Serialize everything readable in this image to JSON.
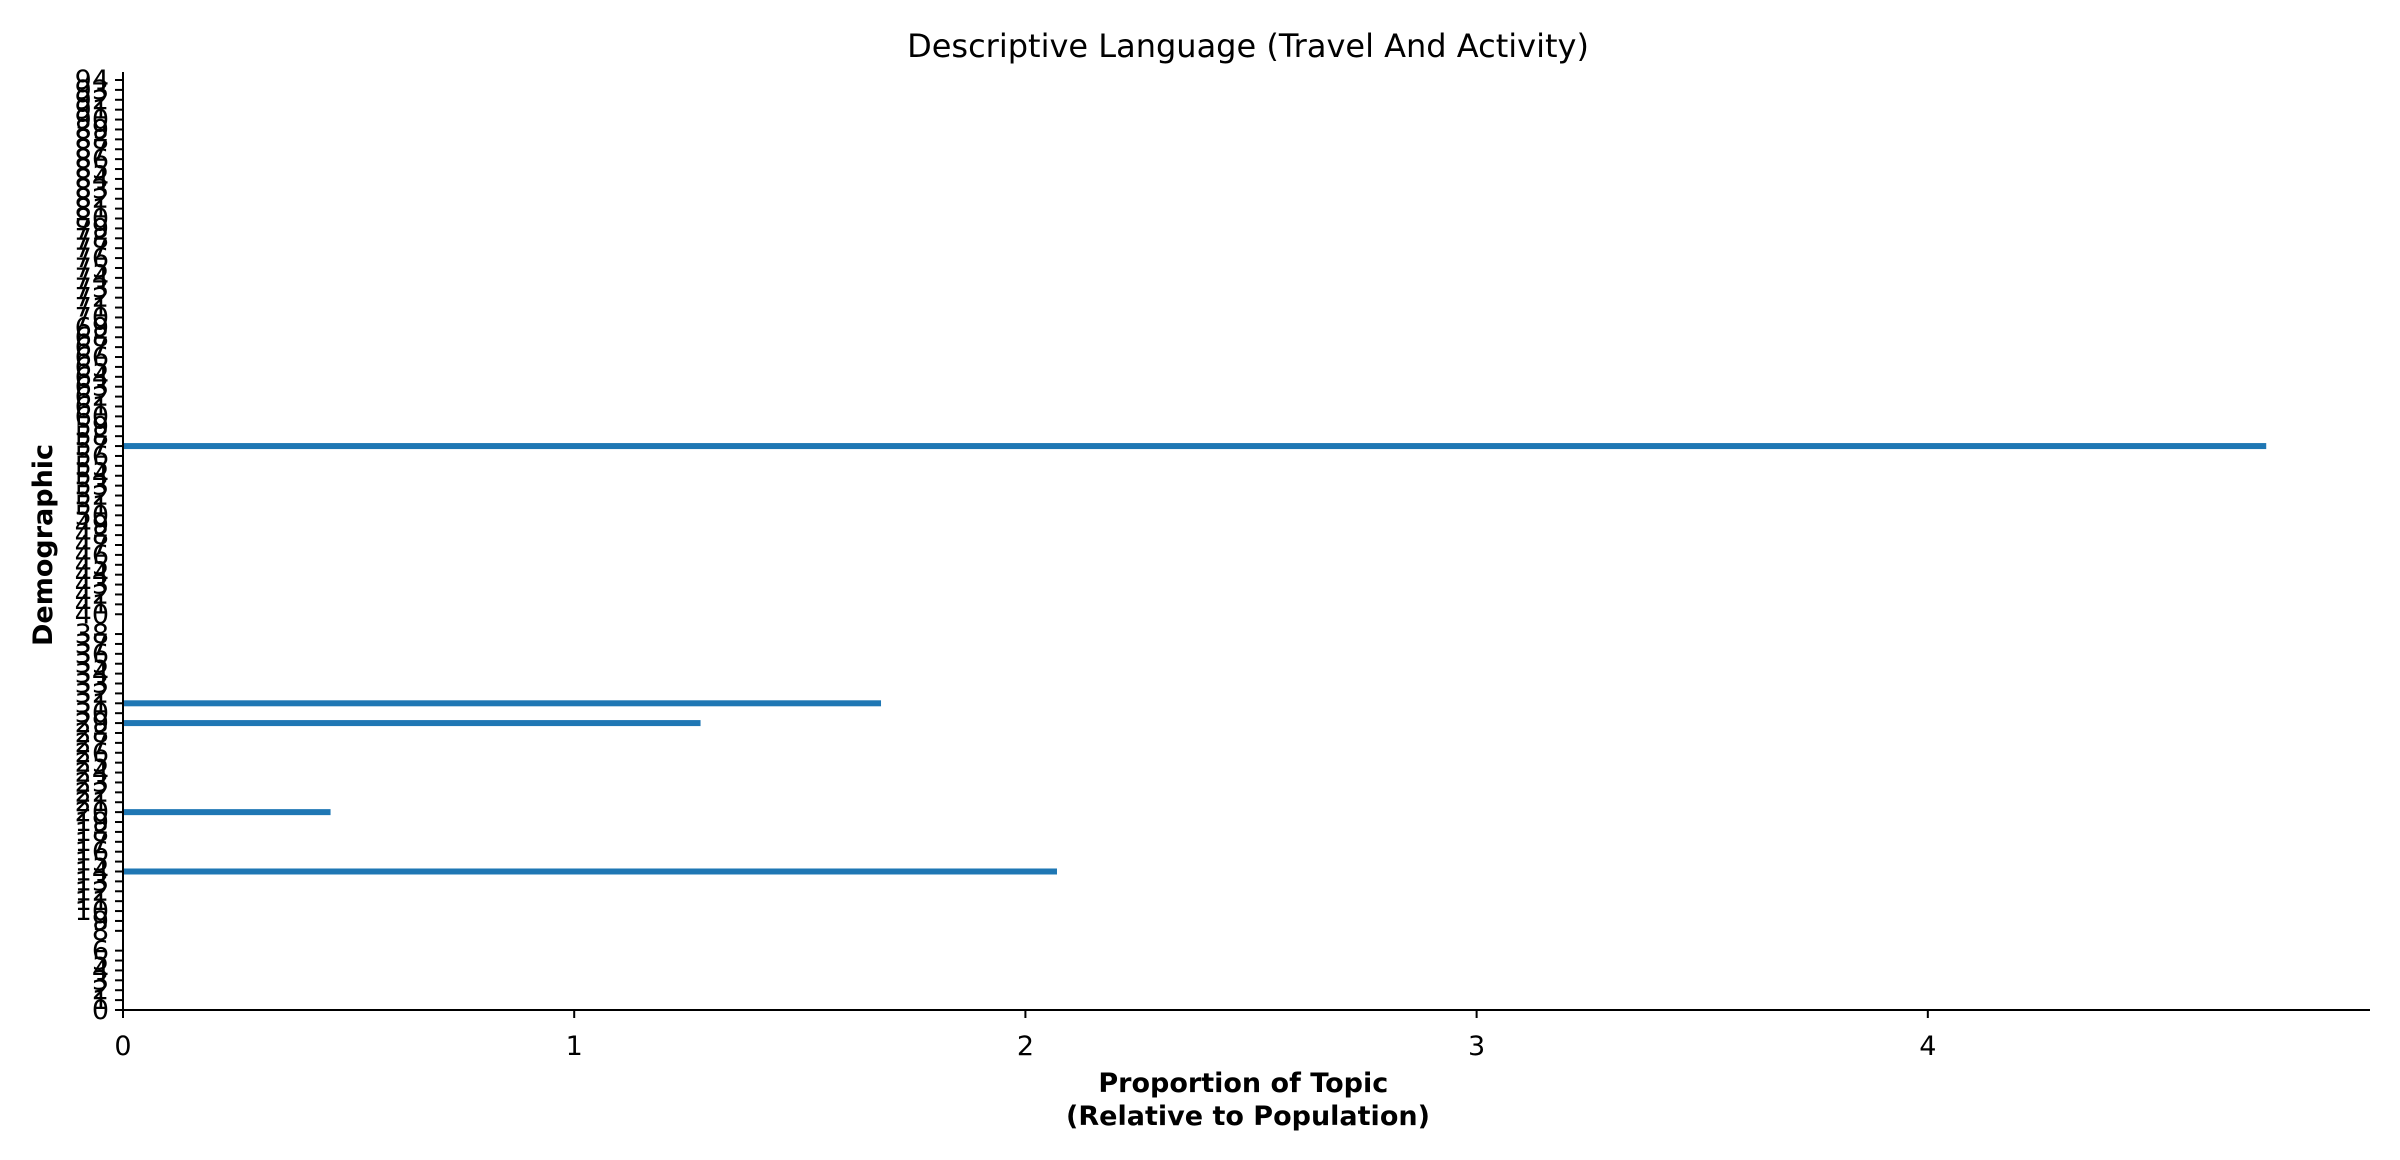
{
  "chart_data": {
    "type": "bar",
    "orientation": "horizontal",
    "title": "Descriptive Language (Travel And Activity)",
    "xlabel_lines": [
      "Proportion of Topic",
      "(Relative to Population)"
    ],
    "ylabel": "Demographic",
    "xlim": [
      0,
      4.98
    ],
    "x_ticks": [
      0,
      1,
      2,
      3,
      4
    ],
    "ylim": [
      0,
      94
    ],
    "y_ticks": [
      0,
      1,
      2,
      3,
      4,
      5,
      6,
      8,
      9,
      10,
      11,
      12,
      13,
      14,
      15,
      16,
      17,
      18,
      19,
      20,
      21,
      22,
      23,
      24,
      25,
      26,
      27,
      28,
      29,
      30,
      31,
      32,
      33,
      34,
      35,
      36,
      37,
      38,
      40,
      41,
      42,
      43,
      44,
      45,
      46,
      47,
      48,
      49,
      50,
      51,
      52,
      53,
      54,
      55,
      56,
      57,
      58,
      59,
      60,
      61,
      62,
      63,
      64,
      65,
      66,
      67,
      68,
      69,
      70,
      71,
      72,
      73,
      74,
      75,
      76,
      77,
      78,
      79,
      80,
      81,
      82,
      83,
      84,
      85,
      86,
      87,
      88,
      89,
      90,
      91,
      92,
      93,
      94
    ],
    "bar_color": "#1f77b4",
    "bars": [
      {
        "category": "14",
        "value": 2.07
      },
      {
        "category": "20",
        "value": 0.46
      },
      {
        "category": "29",
        "value": 1.28
      },
      {
        "category": "31",
        "value": 1.68
      },
      {
        "category": "57",
        "value": 4.75
      }
    ],
    "grid": false,
    "legend": "none"
  }
}
